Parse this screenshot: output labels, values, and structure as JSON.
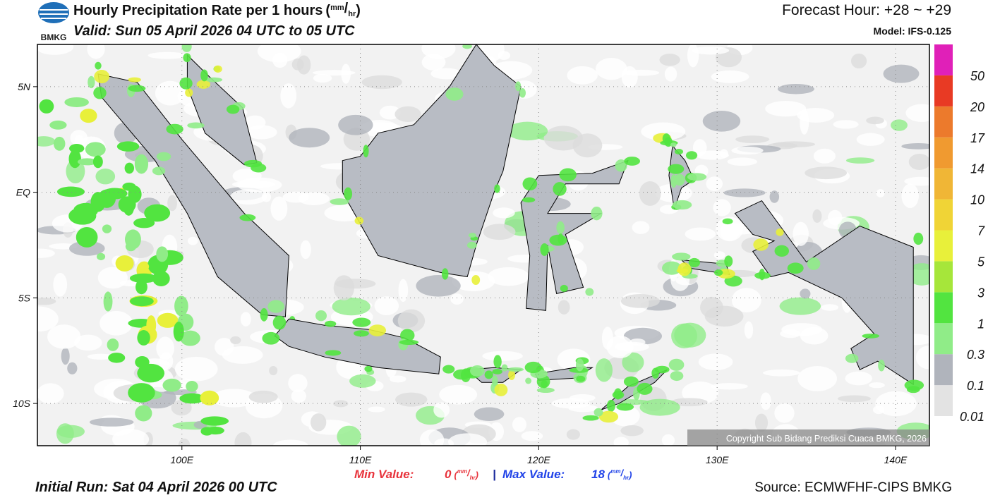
{
  "header": {
    "logo_text": "BMKG",
    "title": "Hourly Precipitation Rate per 1 hours",
    "unit": {
      "open": "(",
      "numerator": "mm",
      "slash": "/",
      "denominator": "hr",
      "close": ")"
    },
    "valid": "Valid: Sun 05 April 2026 04 UTC to 05 UTC",
    "forecast_hour": "Forecast Hour: +28 ~ +29",
    "model": "Model: IFS-0.125"
  },
  "map": {
    "lon_lim": [
      91.9,
      141.9
    ],
    "lat_lim": [
      -12,
      7
    ],
    "lat_ticks": [
      {
        "value": 5,
        "label": "5N"
      },
      {
        "value": 0,
        "label": "EQ"
      },
      {
        "value": -5,
        "label": "5S"
      },
      {
        "value": -10,
        "label": "10S"
      }
    ],
    "lon_ticks": [
      {
        "value": 100,
        "label": "100E"
      },
      {
        "value": 110,
        "label": "110E"
      },
      {
        "value": 120,
        "label": "120E"
      },
      {
        "value": 130,
        "label": "130E"
      },
      {
        "value": 140,
        "label": "140E"
      }
    ],
    "copyright": "Copyright Sub Bidang Prediksi Cuaca BMKG, 2026"
  },
  "colorbar": {
    "levels": [
      0.01,
      0.1,
      0.3,
      1,
      3,
      5,
      7,
      10,
      14,
      17,
      20,
      50
    ],
    "colors": [
      "#e3e3e3",
      "#b0b4bc",
      "#90ec88",
      "#52e440",
      "#a6e63a",
      "#e8f03a",
      "#f0d436",
      "#f0b636",
      "#f09a30",
      "#ec7a2c",
      "#e83a24",
      "#e020b8"
    ]
  },
  "stats": {
    "min_label": "Min Value:",
    "min": 0,
    "separator": "|",
    "max_label": "Max Value:",
    "max": 18
  },
  "footer": {
    "initial_run": "Initial Run: Sat 04 April 2026 00 UTC",
    "source": "Source: ECMWFHF-CIPS BMKG"
  }
}
